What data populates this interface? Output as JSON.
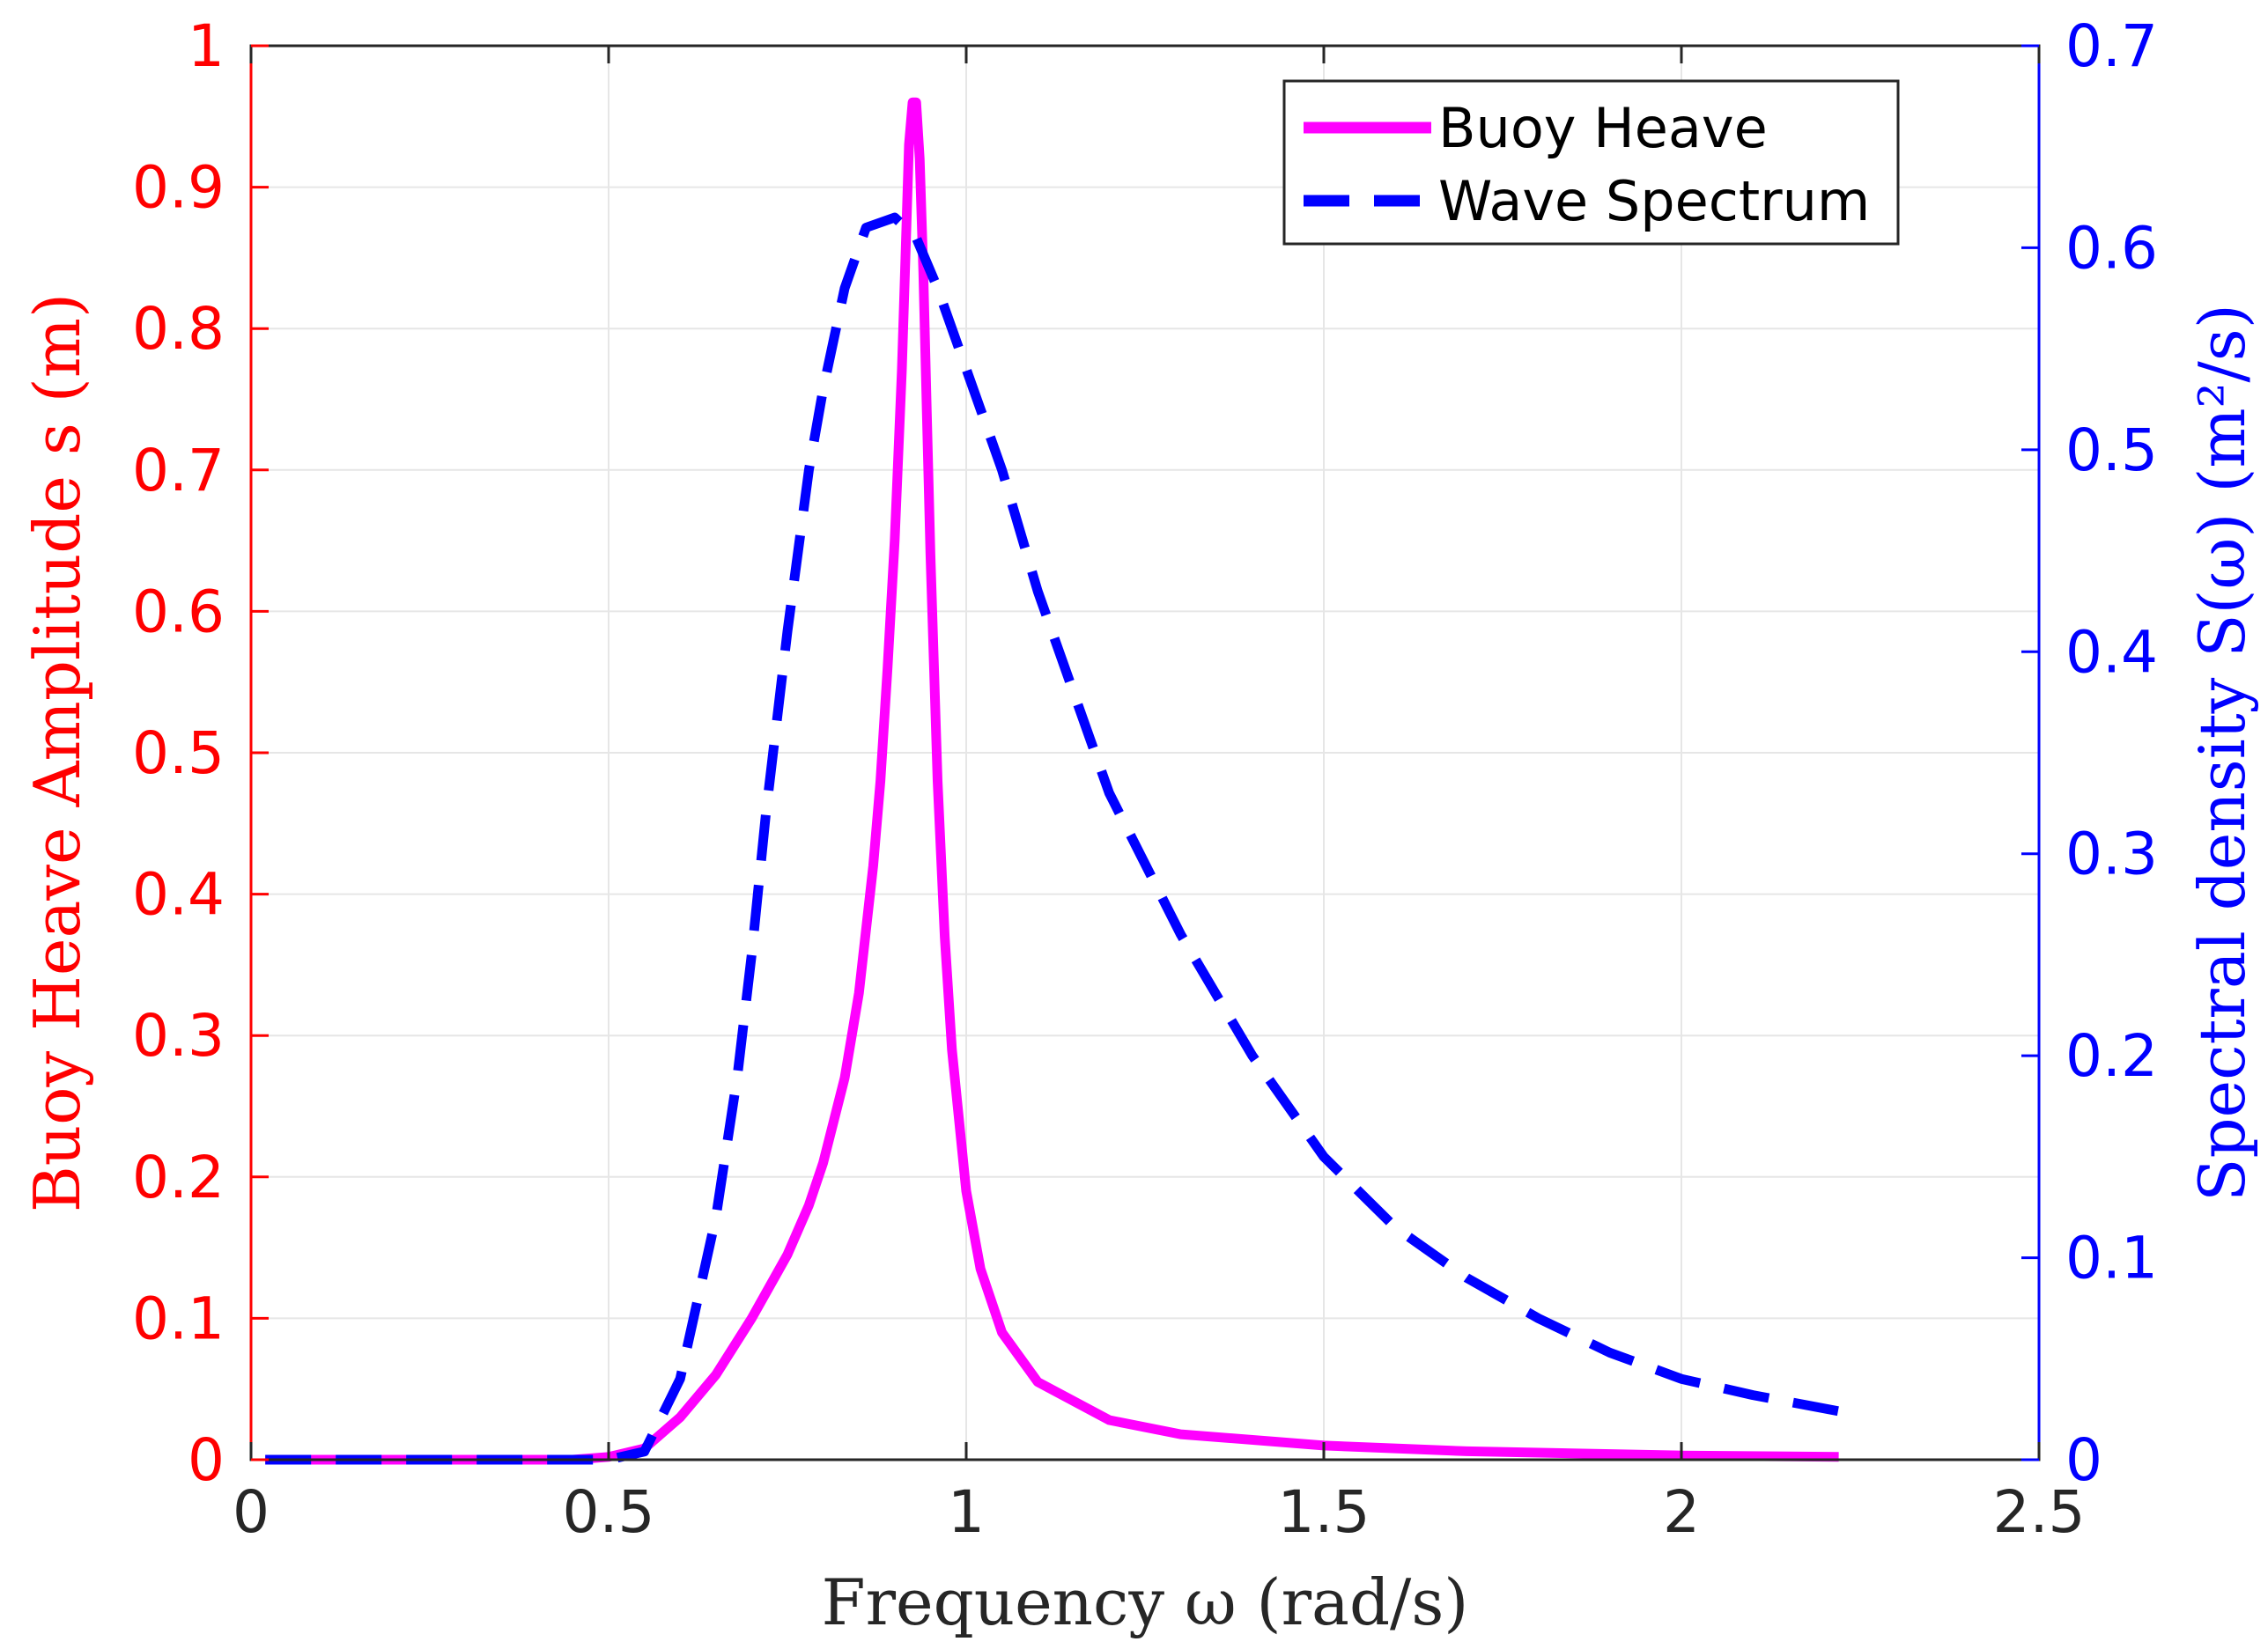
{
  "chart_data": {
    "type": "line",
    "title": "",
    "xlabel": "Frequency ω (rad/s)",
    "ylabel_left": "Buoy Heave Amplitude s (m)",
    "ylabel_right": "Spectral density S(ω) (m²/s)",
    "xlim": [
      0,
      2.5
    ],
    "ylim_left": [
      0,
      1
    ],
    "ylim_right": [
      0,
      0.7
    ],
    "xticks": [
      "0",
      "0.5",
      "1",
      "1.5",
      "2",
      "2.5"
    ],
    "yticks_left": [
      "0",
      "0.1",
      "0.2",
      "0.3",
      "0.4",
      "0.5",
      "0.6",
      "0.7",
      "0.8",
      "0.9",
      "1"
    ],
    "yticks_right": [
      "0",
      "0.1",
      "0.2",
      "0.3",
      "0.4",
      "0.5",
      "0.6",
      "0.7"
    ],
    "grid": true,
    "legend_position": "top-right",
    "colors": {
      "left_axis": "#ff0000",
      "right_axis": "#0000ff",
      "heave": "#ff00ff",
      "spectrum": "#0000ff",
      "grid": "#e6e6e6"
    },
    "series": [
      {
        "name": "Buoy Heave",
        "axis": "left",
        "style": "solid",
        "x": [
          0.02,
          0.3,
          0.45,
          0.5,
          0.55,
          0.6,
          0.65,
          0.7,
          0.75,
          0.78,
          0.8,
          0.83,
          0.85,
          0.87,
          0.88,
          0.89,
          0.9,
          0.91,
          0.915,
          0.92,
          0.925,
          0.93,
          0.935,
          0.94,
          0.945,
          0.95,
          0.96,
          0.97,
          0.98,
          1.0,
          1.02,
          1.05,
          1.1,
          1.2,
          1.3,
          1.5,
          1.7,
          2.0,
          2.22
        ],
        "y": [
          0.0,
          0.0,
          0.0,
          0.002,
          0.008,
          0.03,
          0.06,
          0.1,
          0.145,
          0.18,
          0.21,
          0.27,
          0.33,
          0.42,
          0.48,
          0.56,
          0.65,
          0.77,
          0.85,
          0.93,
          0.96,
          0.96,
          0.92,
          0.84,
          0.74,
          0.64,
          0.48,
          0.37,
          0.29,
          0.19,
          0.135,
          0.09,
          0.055,
          0.028,
          0.018,
          0.01,
          0.006,
          0.003,
          0.002
        ]
      },
      {
        "name": "Wave Spectrum",
        "axis": "right",
        "style": "dashed",
        "x": [
          0.02,
          0.3,
          0.5,
          0.55,
          0.6,
          0.65,
          0.68,
          0.7,
          0.72,
          0.75,
          0.78,
          0.8,
          0.83,
          0.86,
          0.9,
          0.93,
          0.96,
          1.0,
          1.05,
          1.1,
          1.15,
          1.2,
          1.3,
          1.4,
          1.5,
          1.6,
          1.7,
          1.8,
          1.9,
          2.0,
          2.1,
          2.22
        ],
        "y": [
          0.0,
          0.0,
          0.0,
          0.004,
          0.04,
          0.12,
          0.19,
          0.25,
          0.32,
          0.41,
          0.49,
          0.53,
          0.58,
          0.61,
          0.615,
          0.605,
          0.58,
          0.54,
          0.49,
          0.43,
          0.38,
          0.33,
          0.26,
          0.2,
          0.15,
          0.115,
          0.09,
          0.07,
          0.053,
          0.04,
          0.032,
          0.024
        ]
      }
    ]
  }
}
